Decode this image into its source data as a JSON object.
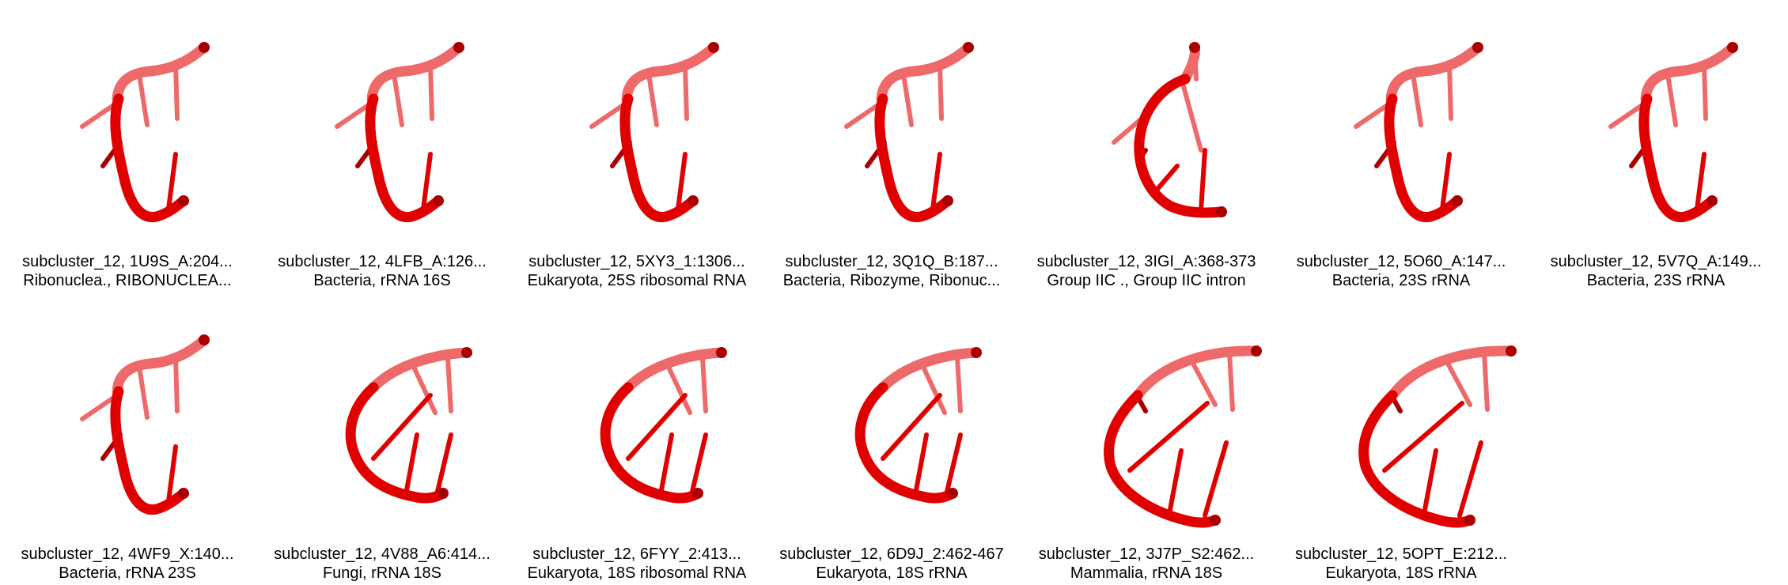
{
  "panels": [
    {
      "id": "1U9S_A",
      "line1": "subcluster_12, 1U9S_A:204...",
      "line2": "Ribonuclea., RIBONUCLEA...",
      "shape": "narrow"
    },
    {
      "id": "4LFB_A",
      "line1": "subcluster_12, 4LFB_A:126...",
      "line2": "Bacteria, rRNA 16S",
      "shape": "narrow"
    },
    {
      "id": "5XY3_1",
      "line1": "subcluster_12, 5XY3_1:1306...",
      "line2": "Eukaryota, 25S ribosomal RNA",
      "shape": "narrow"
    },
    {
      "id": "3Q1Q_B",
      "line1": "subcluster_12, 3Q1Q_B:187...",
      "line2": "Bacteria, Ribozyme, Ribonuc...",
      "shape": "narrow"
    },
    {
      "id": "3IGI_A",
      "line1": "subcluster_12, 3IGI_A:368-373",
      "line2": "Group IIC ., Group IIC intron",
      "shape": "loop"
    },
    {
      "id": "5O60_A",
      "line1": "subcluster_12, 5O60_A:147...",
      "line2": "Bacteria, 23S rRNA",
      "shape": "narrow"
    },
    {
      "id": "5V7Q_A",
      "line1": "subcluster_12, 5V7Q_A:149...",
      "line2": "Bacteria, 23S rRNA",
      "shape": "narrow"
    },
    {
      "id": "4WF9_X",
      "line1": "subcluster_12, 4WF9_X:140...",
      "line2": "Bacteria, rRNA 23S",
      "shape": "narrow"
    },
    {
      "id": "4V88_A6",
      "line1": "subcluster_12, 4V88_A6:414...",
      "line2": "Fungi, rRNA 18S",
      "shape": "arc"
    },
    {
      "id": "6FYY_2",
      "line1": "subcluster_12, 6FYY_2:413...",
      "line2": "Eukaryota, 18S ribosomal RNA",
      "shape": "arc"
    },
    {
      "id": "6D9J_2",
      "line1": "subcluster_12, 6D9J_2:462-467",
      "line2": "Eukaryota, 18S rRNA",
      "shape": "arc"
    },
    {
      "id": "3J7P_S2",
      "line1": "subcluster_12, 3J7P_S2:462...",
      "line2": "Mammalia, rRNA 18S",
      "shape": "wide"
    },
    {
      "id": "5OPT_E",
      "line1": "subcluster_12, 5OPT_E:212...",
      "line2": "Eukaryota, 18S rRNA",
      "shape": "wide"
    }
  ],
  "colors": {
    "backbone": "#e00000",
    "backbone_light": "#ee6a6a",
    "backbone_dark": "#a80000"
  }
}
